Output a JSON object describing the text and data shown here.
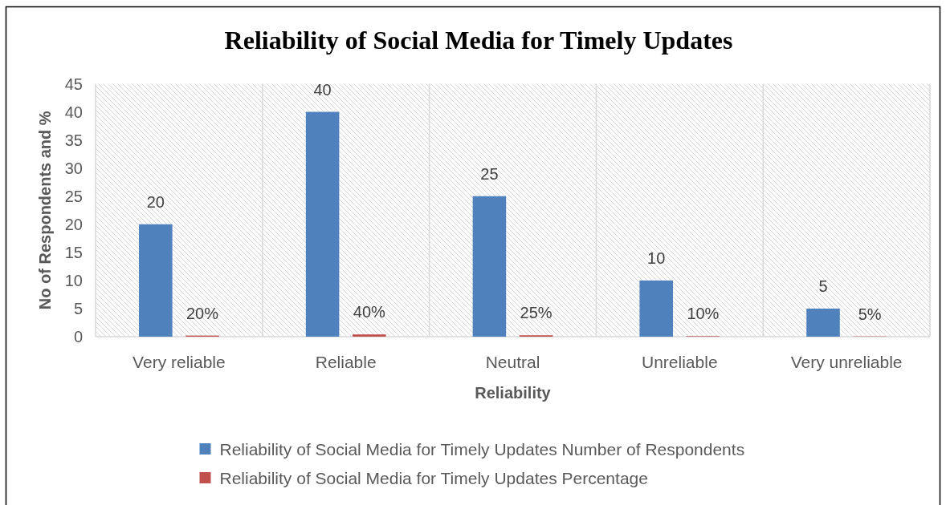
{
  "chart_data": {
    "type": "bar",
    "title": "Reliability of Social Media for Timely Updates",
    "xlabel": "Reliability",
    "ylabel": "No of Respondents and %",
    "categories": [
      "Very reliable",
      "Reliable",
      "Neutral",
      "Unreliable",
      "Very unreliable"
    ],
    "series": [
      {
        "name": "Reliability of Social Media for Timely Updates Number of Respondents",
        "color": "#4f81bd",
        "values": [
          20,
          40,
          25,
          10,
          5
        ],
        "value_labels": [
          "20",
          "40",
          "25",
          "10",
          "5"
        ]
      },
      {
        "name": "Reliability of Social Media for Timely Updates Percentage",
        "color": "#c0504d",
        "values": [
          0.2,
          0.4,
          0.25,
          0.1,
          0.05
        ],
        "value_labels": [
          "20%",
          "40%",
          "25%",
          "10%",
          "5%"
        ]
      }
    ],
    "ylim": [
      0,
      45
    ],
    "yticks": [
      0,
      5,
      10,
      15,
      20,
      25,
      30,
      35,
      40,
      45
    ],
    "grid": "x",
    "legend": "bottom"
  }
}
